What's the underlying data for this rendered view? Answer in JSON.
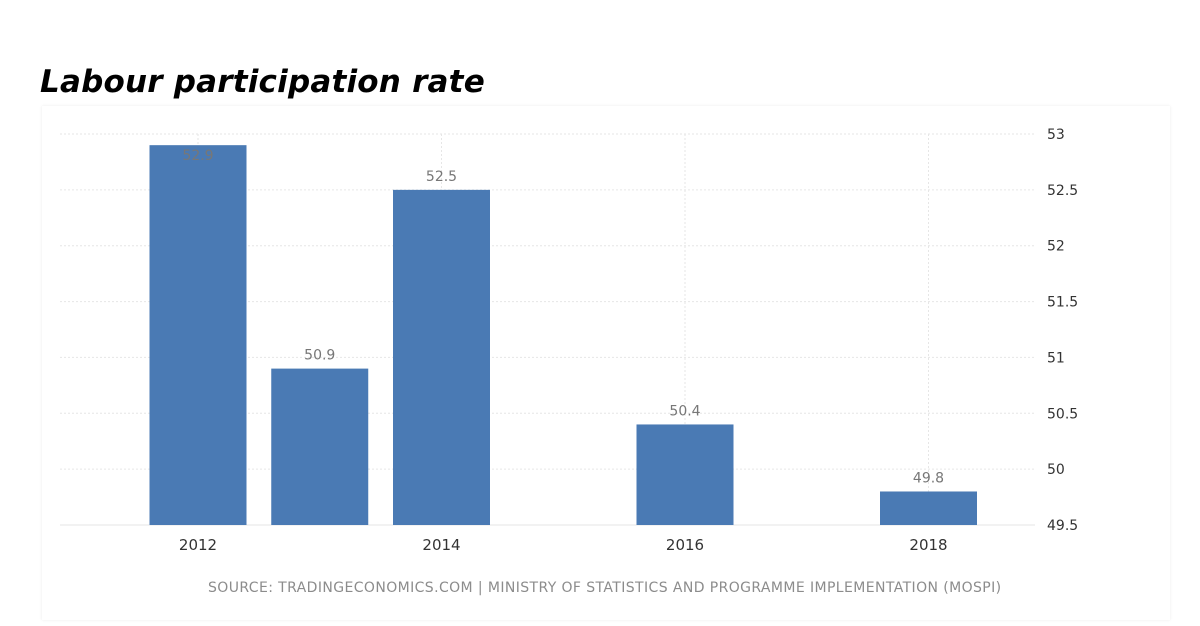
{
  "title": "Labour participation rate",
  "source": "SOURCE: TRADINGECONOMICS.COM | MINISTRY OF STATISTICS AND PROGRAMME IMPLEMENTATION (MOSPI)",
  "colors": {
    "bar": "#4a7ab4",
    "grid": "#e6e6e6",
    "tick_text": "#333333",
    "label_text": "#777777"
  },
  "chart_data": {
    "type": "bar",
    "x": [
      2012,
      2013,
      2014,
      2016,
      2018
    ],
    "values": [
      52.9,
      50.9,
      52.5,
      50.4,
      49.8
    ],
    "data_labels": [
      "52.9",
      "50.9",
      "52.5",
      "50.4",
      "49.8"
    ],
    "xticks": [
      2012,
      2014,
      2016,
      2018
    ],
    "xtick_labels": [
      "2012",
      "2014",
      "2016",
      "2018"
    ],
    "yticks": [
      49.5,
      50,
      50.5,
      51,
      51.5,
      52,
      52.5,
      53
    ],
    "ytick_labels": [
      "49.5",
      "50",
      "50.5",
      "51",
      "51.5",
      "52",
      "52.5",
      "53"
    ],
    "ylim": [
      49.5,
      53
    ],
    "y_axis_side": "right",
    "grid": true,
    "legend": false,
    "title": "Labour participation rate",
    "xlabel": "",
    "ylabel": ""
  }
}
